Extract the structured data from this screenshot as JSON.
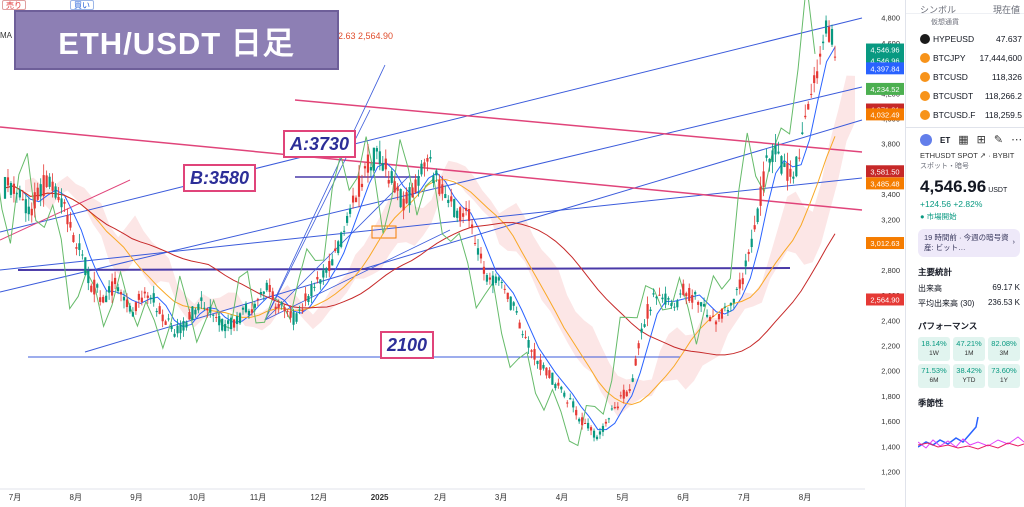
{
  "title_banner": "ETH/USDT 日足",
  "toolbar": {
    "sell_label": "売り",
    "buy_label": "買い",
    "price_small": "0.01",
    "ma_label": "MA R",
    "ma_values": "2.63  2,564.90"
  },
  "annotations": {
    "a": "A:3730",
    "b": "B:3580",
    "c": "2100"
  },
  "chart_data": {
    "type": "candlestick",
    "title": "ETH/USDT 日足",
    "x_ticks": [
      "7月",
      "8月",
      "9月",
      "10月",
      "11月",
      "12月",
      "2025",
      "2月",
      "3月",
      "4月",
      "5月",
      "6月",
      "7月",
      "8月"
    ],
    "y_ticks": [
      1200,
      1400,
      1600,
      1800,
      2000,
      2200,
      2400,
      2600,
      2800,
      3000,
      3200,
      3400,
      3600,
      3800,
      4000,
      4200,
      4400,
      4600,
      4800
    ],
    "ylim": [
      1070,
      4900
    ],
    "price_tags": [
      {
        "value": "4,546.96",
        "value2": "11:49:30",
        "color": "#089981",
        "price": 4546.96
      },
      {
        "value": "4,546.96",
        "color": "#089981",
        "price": 4460
      },
      {
        "value": "4,397.84",
        "color": "#2962ff",
        "price": 4397.84
      },
      {
        "value": "4,234.52",
        "color": "#4caf50",
        "price": 4234.52
      },
      {
        "value": "4,071.21",
        "color": "#c62828",
        "price": 4071.21
      },
      {
        "value": "4,032.49",
        "color": "#f57c00",
        "price": 4032.49
      },
      {
        "value": "3,581.50",
        "color": "#c62828",
        "price": 3581.5
      },
      {
        "value": "3,485.48",
        "color": "#f57c00",
        "price": 3485.48
      },
      {
        "value": "3,012.63",
        "color": "#f57c00",
        "price": 3012.63
      },
      {
        "value": "2,564.90",
        "color": "#e53935",
        "price": 2564.9
      }
    ],
    "close_series": [
      3450,
      3480,
      3350,
      3250,
      3420,
      3500,
      3380,
      3300,
      3100,
      2950,
      2700,
      2620,
      2580,
      2680,
      2550,
      2450,
      2600,
      2650,
      2500,
      2400,
      2300,
      2350,
      2450,
      2550,
      2500,
      2420,
      2350,
      2380,
      2450,
      2500,
      2600,
      2650,
      2550,
      2470,
      2400,
      2500,
      2620,
      2700,
      2750,
      2950,
      3100,
      3300,
      3500,
      3650,
      3700,
      3600,
      3450,
      3350,
      3380,
      3550,
      3650,
      3500,
      3350,
      3300,
      3250,
      3200,
      2900,
      2750,
      2700,
      2650,
      2500,
      2300,
      2200,
      2050,
      2000,
      1900,
      1800,
      1750,
      1600,
      1550,
      1450,
      1600,
      1700,
      1800,
      1900,
      2250,
      2500,
      2600,
      2550,
      2500,
      2650,
      2600,
      2550,
      2450,
      2400,
      2500,
      2550,
      2700,
      2950,
      3300,
      3650,
      3750,
      3600,
      3500,
      3800,
      4200,
      4450,
      4700,
      4546.96
    ]
  },
  "sidebar": {
    "header_symbol": "シンボル",
    "header_price": "現在値",
    "group_label": "仮想通貨",
    "watchlist": [
      {
        "symbol": "HYPEUSD",
        "price": "47.637",
        "color": "#1b1b1b"
      },
      {
        "symbol": "BTCJPY",
        "price": "17,444,600",
        "color": "#f7931a"
      },
      {
        "symbol": "BTCUSD",
        "price": "118,326",
        "color": "#f7931a"
      },
      {
        "symbol": "BTCUSDT",
        "price": "118,266.2",
        "color": "#f7931a"
      },
      {
        "symbol": "BTCUSD.F",
        "price": "118,259.5",
        "color": "#f7931a"
      }
    ],
    "eth_short": "ET",
    "detail_symbol": "ETHUSDT SPOT",
    "detail_exchange": "BYBIT",
    "detail_type": "スポット・暗号",
    "price": "4,546.96",
    "currency": "USDT",
    "change": "+124.56  +2.82%",
    "market_status": "市場開始",
    "event": "19 時間前 · 今週の暗号資産: ビット…",
    "stats_title": "主要統計",
    "volume_label": "出来高",
    "volume_value": "69.17 K",
    "avg_volume_label": "平均出来高 (30)",
    "avg_volume_value": "236.53 K",
    "perf_title": "パフォーマンス",
    "performance": [
      {
        "value": "18.14%",
        "label": "1W"
      },
      {
        "value": "47.21%",
        "label": "1M"
      },
      {
        "value": "82.08%",
        "label": "3M"
      },
      {
        "value": "71.53%",
        "label": "6M"
      },
      {
        "value": "38.42%",
        "label": "YTD"
      },
      {
        "value": "73.60%",
        "label": "1Y"
      }
    ],
    "seasonality_title": "季節性"
  }
}
